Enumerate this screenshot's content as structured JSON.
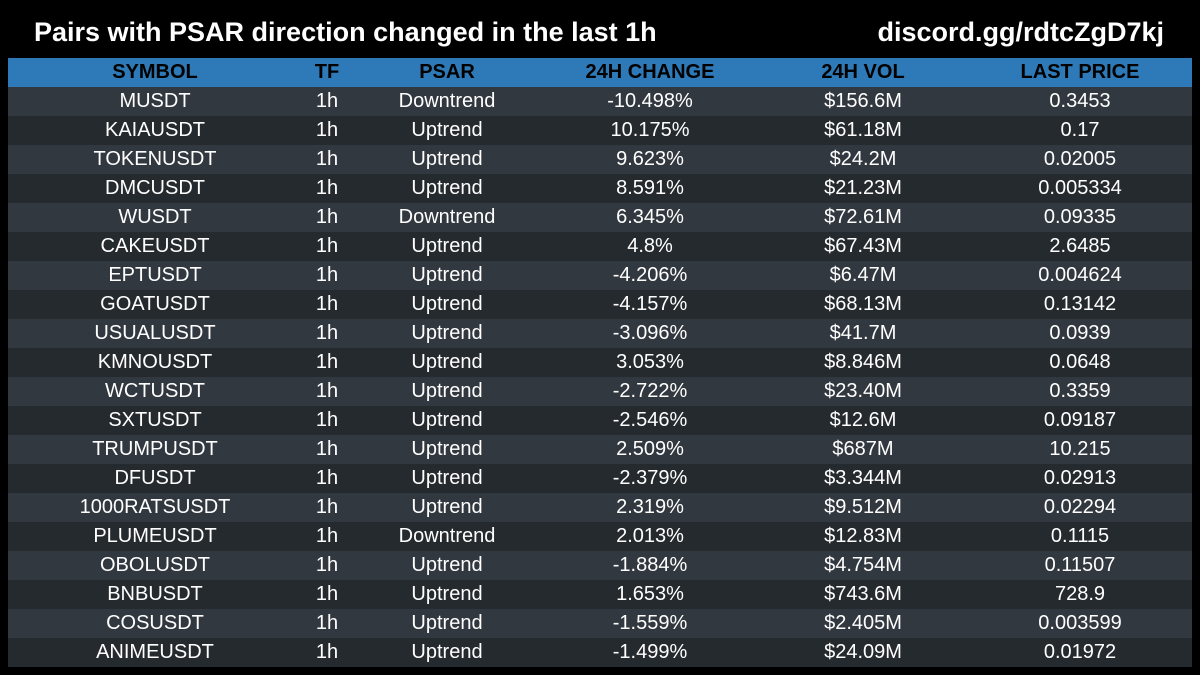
{
  "header": {
    "title": "Pairs with PSAR direction changed in the last 1h",
    "link": "discord.gg/rdtcZgD7kj"
  },
  "table": {
    "columns": [
      "SYMBOL",
      "TF",
      "PSAR",
      "24H CHANGE",
      "24H VOL",
      "LAST PRICE"
    ],
    "rows": [
      [
        "MUSDT",
        "1h",
        "Downtrend",
        "-10.498%",
        "$156.6M",
        "0.3453"
      ],
      [
        "KAIAUSDT",
        "1h",
        "Uptrend",
        "10.175%",
        "$61.18M",
        "0.17"
      ],
      [
        "TOKENUSDT",
        "1h",
        "Uptrend",
        "9.623%",
        "$24.2M",
        "0.02005"
      ],
      [
        "DMCUSDT",
        "1h",
        "Uptrend",
        "8.591%",
        "$21.23M",
        "0.005334"
      ],
      [
        "WUSDT",
        "1h",
        "Downtrend",
        "6.345%",
        "$72.61M",
        "0.09335"
      ],
      [
        "CAKEUSDT",
        "1h",
        "Uptrend",
        "4.8%",
        "$67.43M",
        "2.6485"
      ],
      [
        "EPTUSDT",
        "1h",
        "Uptrend",
        "-4.206%",
        "$6.47M",
        "0.004624"
      ],
      [
        "GOATUSDT",
        "1h",
        "Uptrend",
        "-4.157%",
        "$68.13M",
        "0.13142"
      ],
      [
        "USUALUSDT",
        "1h",
        "Uptrend",
        "-3.096%",
        "$41.7M",
        "0.0939"
      ],
      [
        "KMNOUSDT",
        "1h",
        "Uptrend",
        "3.053%",
        "$8.846M",
        "0.0648"
      ],
      [
        "WCTUSDT",
        "1h",
        "Uptrend",
        "-2.722%",
        "$23.40M",
        "0.3359"
      ],
      [
        "SXTUSDT",
        "1h",
        "Uptrend",
        "-2.546%",
        "$12.6M",
        "0.09187"
      ],
      [
        "TRUMPUSDT",
        "1h",
        "Uptrend",
        "2.509%",
        "$687M",
        "10.215"
      ],
      [
        "DFUSDT",
        "1h",
        "Uptrend",
        "-2.379%",
        "$3.344M",
        "0.02913"
      ],
      [
        "1000RATSUSDT",
        "1h",
        "Uptrend",
        "2.319%",
        "$9.512M",
        "0.02294"
      ],
      [
        "PLUMEUSDT",
        "1h",
        "Downtrend",
        "2.013%",
        "$12.83M",
        "0.1115"
      ],
      [
        "OBOLUSDT",
        "1h",
        "Uptrend",
        "-1.884%",
        "$4.754M",
        "0.11507"
      ],
      [
        "BNBUSDT",
        "1h",
        "Uptrend",
        "1.653%",
        "$743.6M",
        "728.9"
      ],
      [
        "COSUSDT",
        "1h",
        "Uptrend",
        "-1.559%",
        "$2.405M",
        "0.003599"
      ],
      [
        "ANIMEUSDT",
        "1h",
        "Uptrend",
        "-1.499%",
        "$24.09M",
        "0.01972"
      ]
    ]
  },
  "colors": {
    "background": "#000000",
    "header_row": "#2e7ab8",
    "row_odd": "#32383f",
    "row_even": "#252a2f",
    "text": "#ffffff",
    "header_text": "#000000"
  }
}
